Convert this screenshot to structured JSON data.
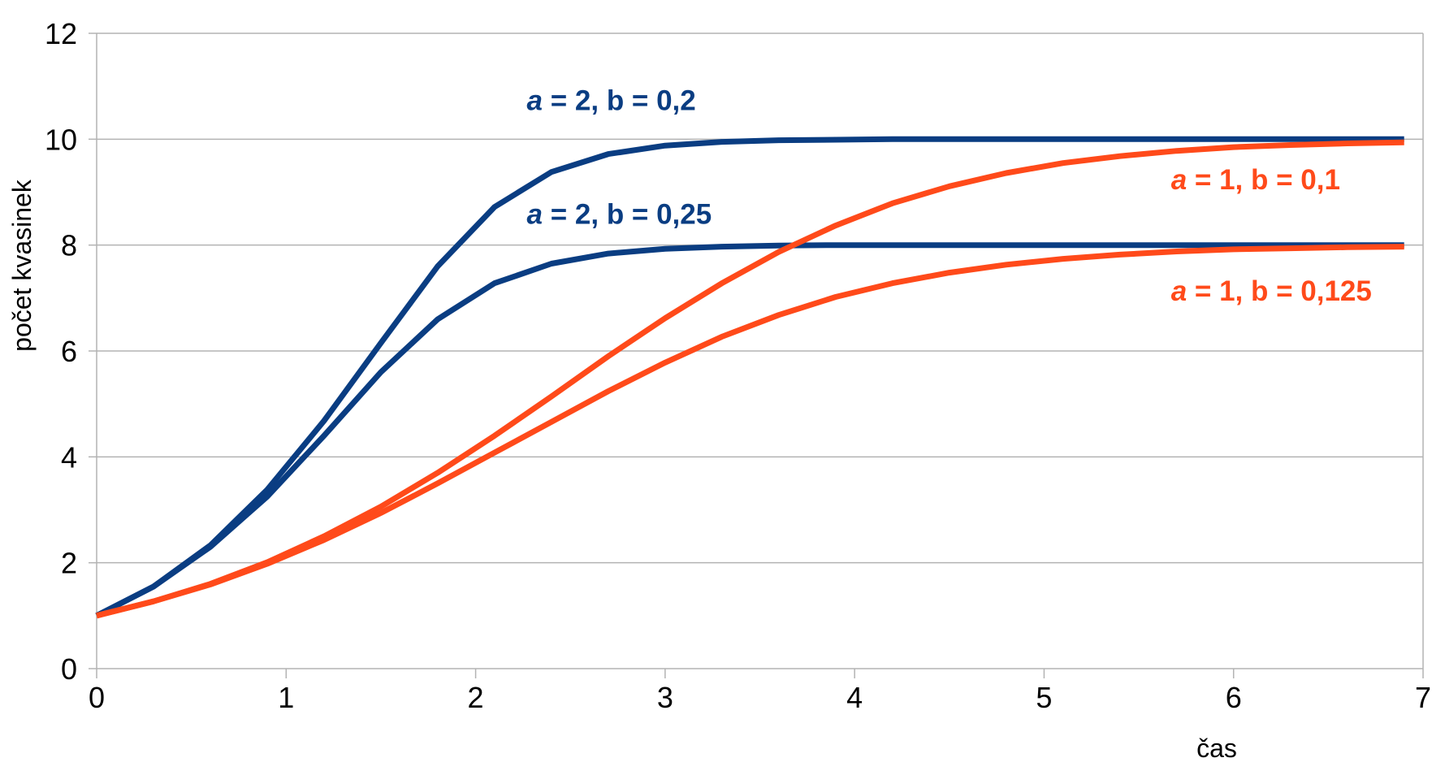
{
  "chart_data": {
    "type": "line",
    "title": "",
    "xlabel": "čas",
    "ylabel": "počet kvasinek",
    "xlim": [
      0,
      7
    ],
    "ylim": [
      0,
      12
    ],
    "x_ticks": [
      "0",
      "1",
      "2",
      "3",
      "4",
      "5",
      "6",
      "7"
    ],
    "y_ticks": [
      "0",
      "2",
      "4",
      "6",
      "8",
      "10",
      "12"
    ],
    "grid": "horizontal",
    "legend": "none",
    "colors": {
      "blue": "#0a3d82",
      "orange": "#ff4a1a",
      "grid": "#b3b3b3",
      "axis": "#b3b3b3"
    },
    "series": [
      {
        "name": "a = 2, b = 0,2",
        "label_parts": {
          "param": "a",
          "rest": " = 2, b = 0,2"
        },
        "color": "#0a3d82",
        "x": [
          0,
          0.3,
          0.6,
          0.9,
          1.2,
          1.5,
          1.8,
          2.1,
          2.4,
          2.7,
          3.0,
          3.3,
          3.6,
          3.9,
          4.2,
          4.5,
          4.8,
          5.1,
          5.4,
          5.7,
          6.0,
          6.3,
          6.6,
          6.9
        ],
        "values": [
          1.0,
          1.55,
          2.33,
          3.38,
          4.68,
          6.15,
          7.6,
          8.72,
          9.38,
          9.72,
          9.88,
          9.95,
          9.98,
          9.99,
          10.0,
          10.0,
          10.0,
          10.0,
          10.0,
          10.0,
          10.0,
          10.0,
          10.0,
          10.0
        ]
      },
      {
        "name": "a = 2, b = 0,25",
        "label_parts": {
          "param": "a",
          "rest": " = 2, b = 0,25"
        },
        "color": "#0a3d82",
        "x": [
          0,
          0.3,
          0.6,
          0.9,
          1.2,
          1.5,
          1.8,
          2.1,
          2.4,
          2.7,
          3.0,
          3.3,
          3.6,
          3.9,
          4.2,
          4.5,
          4.8,
          5.1,
          5.4,
          5.7,
          6.0,
          6.3,
          6.6,
          6.9
        ],
        "values": [
          1.0,
          1.55,
          2.3,
          3.25,
          4.4,
          5.6,
          6.6,
          7.28,
          7.65,
          7.84,
          7.93,
          7.97,
          7.99,
          8.0,
          8.0,
          8.0,
          8.0,
          8.0,
          8.0,
          8.0,
          8.0,
          8.0,
          8.0,
          8.0
        ]
      },
      {
        "name": "a = 1, b = 0,1",
        "label_parts": {
          "param": "a",
          "rest": " = 1, b = 0,1"
        },
        "color": "#ff4a1a",
        "x": [
          0,
          0.3,
          0.6,
          0.9,
          1.2,
          1.5,
          1.8,
          2.1,
          2.4,
          2.7,
          3.0,
          3.3,
          3.6,
          3.9,
          4.2,
          4.5,
          4.8,
          5.1,
          5.4,
          5.7,
          6.0,
          6.3,
          6.6,
          6.9
        ],
        "values": [
          1.0,
          1.27,
          1.6,
          2.01,
          2.5,
          3.06,
          3.7,
          4.4,
          5.14,
          5.9,
          6.62,
          7.28,
          7.87,
          8.37,
          8.79,
          9.11,
          9.36,
          9.55,
          9.68,
          9.78,
          9.85,
          9.89,
          9.92,
          9.94
        ]
      },
      {
        "name": "a = 1, b = 0,125",
        "label_parts": {
          "param": "a",
          "rest": " = 1, b = 0,125"
        },
        "color": "#ff4a1a",
        "x": [
          0,
          0.3,
          0.6,
          0.9,
          1.2,
          1.5,
          1.8,
          2.1,
          2.4,
          2.7,
          3.0,
          3.3,
          3.6,
          3.9,
          4.2,
          4.5,
          4.8,
          5.1,
          5.4,
          5.7,
          6.0,
          6.3,
          6.6,
          6.9
        ],
        "values": [
          1.0,
          1.27,
          1.59,
          1.98,
          2.43,
          2.94,
          3.5,
          4.08,
          4.66,
          5.24,
          5.78,
          6.27,
          6.68,
          7.02,
          7.28,
          7.48,
          7.63,
          7.74,
          7.82,
          7.88,
          7.92,
          7.94,
          7.96,
          7.97
        ]
      }
    ]
  }
}
